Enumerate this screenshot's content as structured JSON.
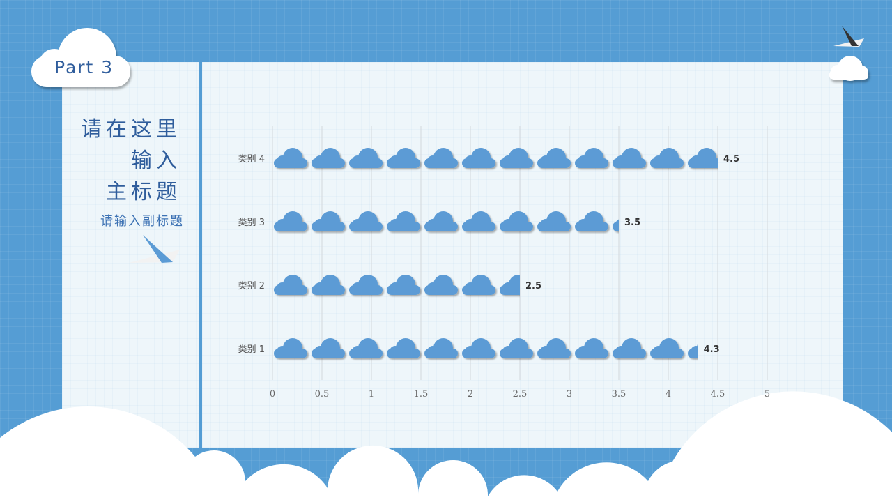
{
  "badge": {
    "label": "Part 3"
  },
  "heading": {
    "lines": [
      "请在这里",
      "输入",
      "主标题"
    ],
    "subtitle": "请输入副标题"
  },
  "colors": {
    "background": "#559dd4",
    "panel": "#eef6fa",
    "cloud": "#5b9bd5",
    "title": "#2f5d9c"
  },
  "icons": [
    "cloud-icon",
    "paper-plane-icon"
  ],
  "chart_data": {
    "type": "bar",
    "orientation": "horizontal",
    "pictograph": "cloud-icon",
    "categories": [
      "类别 1",
      "类别 2",
      "类别 3",
      "类别 4"
    ],
    "values": [
      4.3,
      2.5,
      3.5,
      4.5
    ],
    "value_labels": [
      "4.3",
      "2.5",
      "3.5",
      "4.5"
    ],
    "xlim": [
      0,
      5
    ],
    "xticks": [
      "0",
      "0.5",
      "1",
      "1.5",
      "2",
      "2.5",
      "3",
      "3.5",
      "4",
      "4.5",
      "5"
    ],
    "grid": true,
    "legend": "none"
  }
}
